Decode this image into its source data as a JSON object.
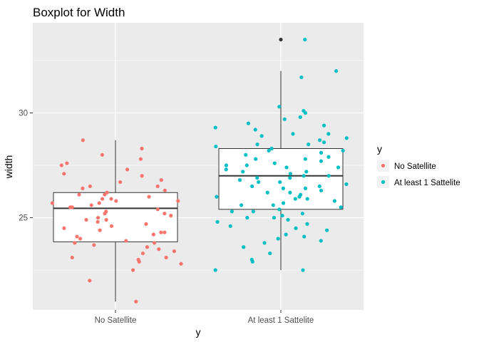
{
  "chart_data": {
    "type": "boxplot",
    "title": "Boxplot for Width",
    "xlabel": "y",
    "ylabel": "width",
    "categories": [
      "No Satellite",
      "At least 1 Sattelite"
    ],
    "ylim": [
      20.6,
      34.3
    ],
    "yticks": [
      25,
      30
    ],
    "grid": true,
    "legend": {
      "title": "y",
      "position": "right",
      "entries": [
        "No Satellite",
        "At least 1 Sattelite"
      ]
    },
    "colors": {
      "No Satellite": "#F8766D",
      "At least 1 Sattelite": "#00BFC4",
      "outlier": "#333333"
    },
    "boxes": [
      {
        "category": "No Satellite",
        "q1": 23.85,
        "median": 25.45,
        "q3": 26.2,
        "whisker_low": 21.0,
        "whisker_high": 28.7,
        "outliers": []
      },
      {
        "category": "At least 1 Sattelite",
        "q1": 25.4,
        "median": 27.0,
        "q3": 28.3,
        "whisker_low": 22.5,
        "whisker_high": 32.0,
        "outliers": [
          33.5
        ]
      }
    ],
    "series": [
      {
        "name": "No Satellite",
        "values": [
          21.0,
          22.0,
          22.5,
          22.8,
          22.9,
          23.0,
          23.1,
          23.1,
          23.3,
          23.5,
          23.6,
          23.7,
          23.8,
          23.8,
          23.9,
          24.0,
          24.1,
          24.2,
          24.3,
          24.3,
          24.5,
          24.6,
          24.7,
          24.8,
          24.9,
          25.0,
          25.1,
          25.2,
          25.2,
          25.3,
          25.4,
          25.5,
          25.5,
          25.6,
          25.7,
          25.8,
          25.8,
          25.9,
          26.0,
          26.1,
          26.2,
          26.3,
          26.5,
          26.5,
          26.7,
          26.8,
          27.0,
          27.1,
          27.3,
          27.5,
          27.8,
          28.0,
          28.3,
          28.7,
          24.4,
          25.9,
          26.1,
          23.4,
          24.9,
          25.7,
          26.4,
          27.6
        ]
      },
      {
        "name": "At least 1 Sattelite",
        "values": [
          22.5,
          22.5,
          22.9,
          23.0,
          23.3,
          23.6,
          23.9,
          24.0,
          24.2,
          24.4,
          24.5,
          24.7,
          24.8,
          24.9,
          25.0,
          25.1,
          25.2,
          25.3,
          25.4,
          25.5,
          25.6,
          25.7,
          25.8,
          25.9,
          26.0,
          26.0,
          26.1,
          26.2,
          26.3,
          26.4,
          26.5,
          26.5,
          26.6,
          26.7,
          26.8,
          26.9,
          27.0,
          27.0,
          27.1,
          27.2,
          27.3,
          27.4,
          27.5,
          27.5,
          27.6,
          27.7,
          27.8,
          27.9,
          28.0,
          28.1,
          28.2,
          28.3,
          28.4,
          28.5,
          28.5,
          28.6,
          28.7,
          28.8,
          29.0,
          29.0,
          29.2,
          29.3,
          29.5,
          29.7,
          29.8,
          30.0,
          30.1,
          30.3,
          31.7,
          32.0,
          33.5,
          25.3,
          26.2,
          27.2,
          24.1,
          25.6,
          26.9,
          27.8,
          28.9,
          23.8,
          25.0,
          26.7,
          24.6,
          27.4,
          28.2,
          25.9,
          26.4,
          29.4
        ]
      }
    ]
  }
}
